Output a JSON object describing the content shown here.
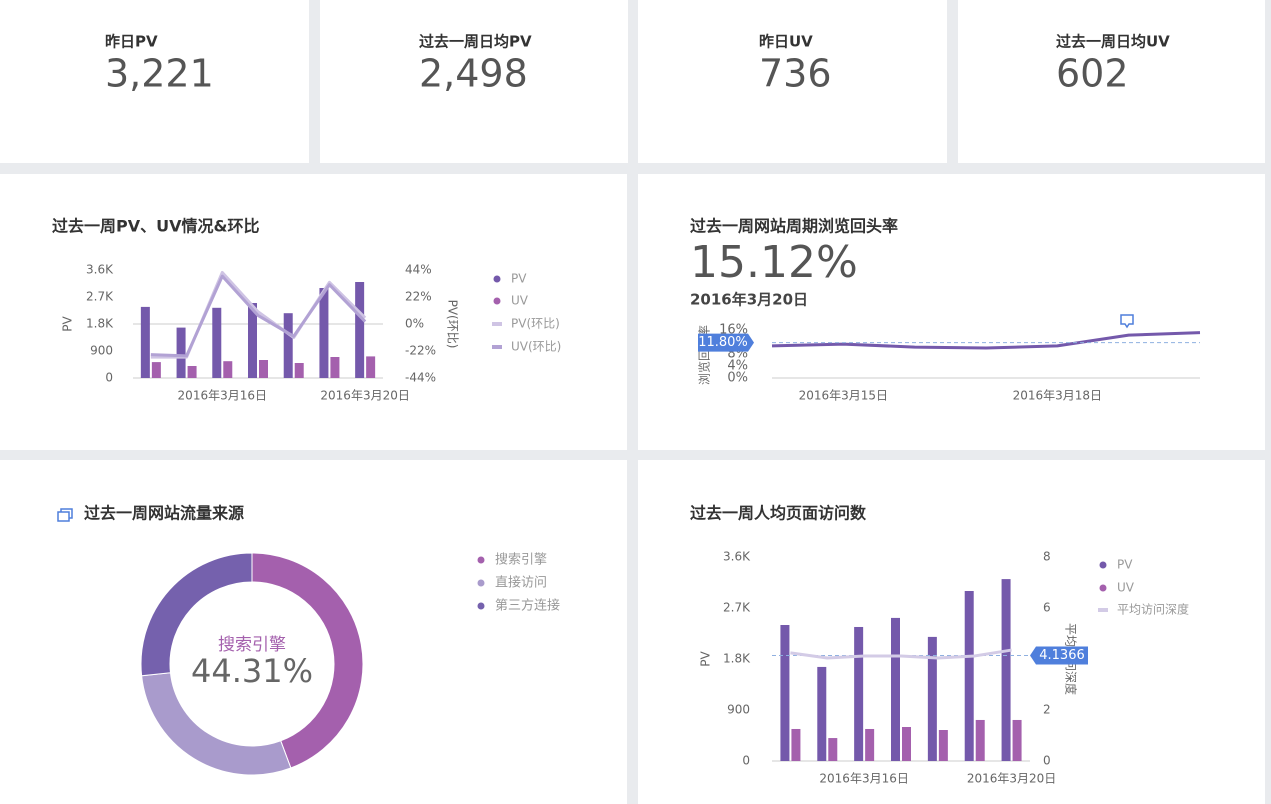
{
  "kpis": [
    {
      "label": "昨日PV",
      "value": "3,221"
    },
    {
      "label": "过去一周日均PV",
      "value": "2,498"
    },
    {
      "label": "昨日UV",
      "value": "736"
    },
    {
      "label": "过去一周日均UV",
      "value": "602"
    }
  ],
  "chart_data": [
    {
      "type": "bar_line",
      "title": "过去一周PV、UV情况&环比",
      "categories": [
        null,
        null,
        "2016年3月16日",
        null,
        null,
        null,
        "2016年3月20日"
      ],
      "y_label": "PV",
      "y2_label": "PV(环比)",
      "ylim": [
        0,
        3600
      ],
      "yticks": [
        0,
        900,
        {
          "value": 1800,
          "label": "1.8K"
        },
        {
          "value": 2700,
          "label": "2.7K"
        },
        {
          "value": 3600,
          "label": "3.6K"
        }
      ],
      "y2lim": [
        -44,
        44
      ],
      "y2ticks": [
        {
          "value": -44,
          "label": "-44%"
        },
        {
          "value": -22,
          "label": "-22%"
        },
        {
          "value": 0,
          "label": "0%"
        },
        {
          "value": 22,
          "label": "22%"
        },
        {
          "value": 44,
          "label": "44%"
        }
      ],
      "legend": "right",
      "series": [
        {
          "name": "PV",
          "type": "bar",
          "color": "#7459ab",
          "values": [
            2370,
            1680,
            2340,
            2500,
            2160,
            3000,
            3200
          ]
        },
        {
          "name": "UV",
          "type": "bar",
          "color": "#a460ad",
          "values": [
            530,
            400,
            560,
            600,
            500,
            700,
            720
          ]
        },
        {
          "name": "PV(环比)",
          "type": "line",
          "axis": "y2",
          "color": "#cfc4e4",
          "values": [
            -27,
            -27,
            42,
            10,
            -11,
            34,
            5
          ]
        },
        {
          "name": "UV(环比)",
          "type": "line",
          "axis": "y2",
          "color": "#b2a2d4",
          "values": [
            -25,
            -26,
            39,
            7,
            -10,
            32,
            2
          ]
        }
      ]
    },
    {
      "type": "line",
      "title": "过去一周网站周期浏览回头率",
      "headline": "15.12%",
      "subtitle": "2016年3月20日",
      "categories": [
        null,
        "2016年3月15日",
        null,
        null,
        "2016年3月18日",
        null,
        null
      ],
      "y_label": "浏览回头率",
      "ylim": [
        0,
        16
      ],
      "yticks": [
        {
          "value": 0,
          "label": "0%"
        },
        {
          "value": 4,
          "label": "4%"
        },
        {
          "value": 8,
          "label": "8%"
        },
        {
          "value": 12,
          "label": "12%"
        },
        {
          "value": 16,
          "label": "16%"
        }
      ],
      "reference": {
        "value": 11.8,
        "label": "11.80%"
      },
      "series": [
        {
          "name": "回头率",
          "color": "#7459ab",
          "values": [
            10.7,
            11.3,
            10.3,
            10.0,
            10.7,
            14.3,
            15.12
          ]
        }
      ]
    },
    {
      "type": "donut",
      "title": "过去一周网站流量来源",
      "categories": [
        "搜索引擎",
        "直接访问",
        "第三方连接"
      ],
      "values": [
        44.31,
        29.0,
        26.69
      ],
      "value_labels": [
        "44.31%",
        null,
        null
      ],
      "colors": [
        "#a460ad",
        "#a99bcc",
        "#7561ad"
      ],
      "legend": "right"
    },
    {
      "type": "bar_line",
      "title": "过去一周人均页面访问数",
      "categories": [
        null,
        null,
        "2016年3月16日",
        null,
        null,
        null,
        "2016年3月20日"
      ],
      "y_label": "PV",
      "y2_label": "平均访问深度",
      "ylim": [
        0,
        3600
      ],
      "yticks": [
        0,
        900,
        {
          "value": 1800,
          "label": "1.8K"
        },
        {
          "value": 2700,
          "label": "2.7K"
        },
        {
          "value": 3600,
          "label": "3.6K"
        }
      ],
      "y2lim": [
        0,
        8
      ],
      "y2ticks": [
        0,
        2,
        4,
        6,
        8
      ],
      "reference": {
        "value": 4.1366,
        "label": "4.1366",
        "axis": "y2"
      },
      "legend": "right",
      "series": [
        {
          "name": "PV",
          "type": "bar",
          "color": "#7459ab",
          "values": [
            2400,
            1660,
            2365,
            2525,
            2190,
            3000,
            3210
          ]
        },
        {
          "name": "UV",
          "type": "bar",
          "color": "#a460ad",
          "values": [
            565,
            405,
            565,
            600,
            547,
            724,
            724
          ]
        },
        {
          "name": "平均访问深度",
          "type": "line",
          "axis": "y2",
          "color": "#d3cbe6",
          "values": [
            4.24,
            4.04,
            4.12,
            4.12,
            4.04,
            4.12,
            4.35
          ]
        }
      ]
    }
  ]
}
